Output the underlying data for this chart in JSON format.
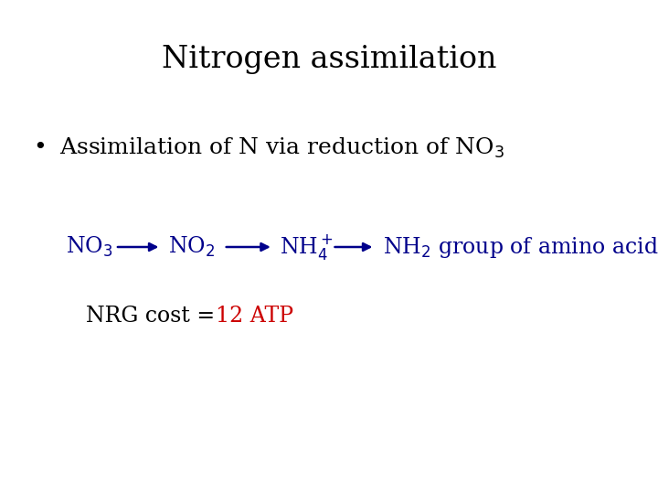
{
  "title": "Nitrogen assimilation",
  "title_fontsize": 24,
  "title_color": "#000000",
  "bg_color": "#ffffff",
  "bullet_fontsize": 18,
  "bullet_color": "#000000",
  "rxn_color": "#00008B",
  "rxn_fontsize": 17,
  "nrg_label_color": "#000000",
  "nrg_value_color": "#cc0000",
  "nrg_fontsize": 17,
  "arrow_color": "#00008B"
}
